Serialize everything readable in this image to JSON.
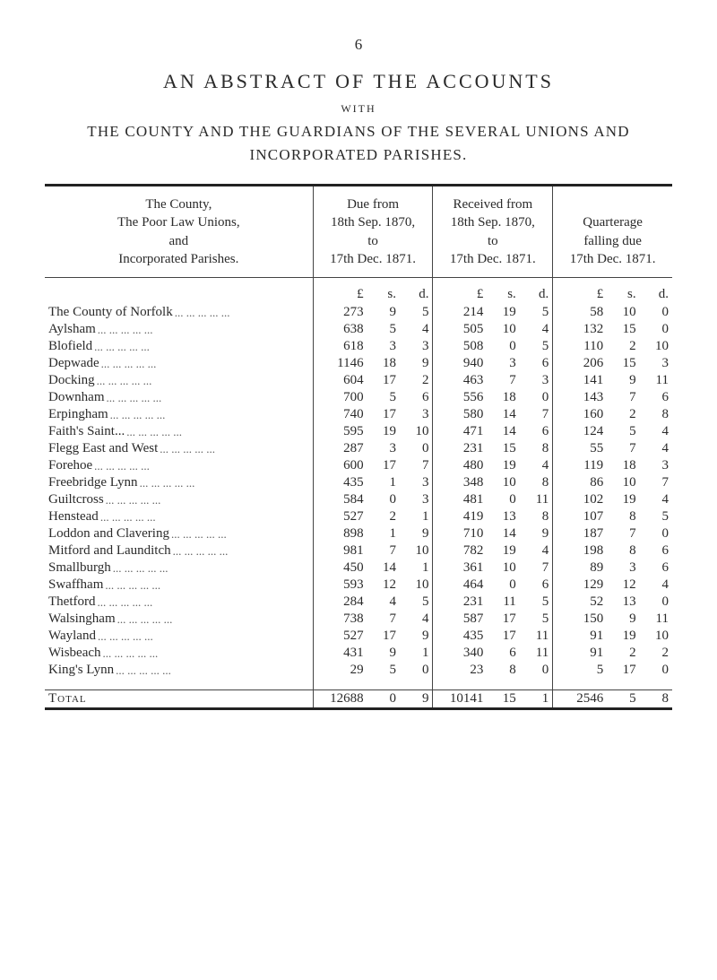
{
  "page_number": "6",
  "title": "AN ABSTRACT OF THE ACCOUNTS",
  "with_label": "WITH",
  "subtitle_line1": "THE COUNTY AND THE GUARDIANS OF THE SEVERAL UNIONS AND",
  "subtitle_line2": "INCORPORATED PARISHES.",
  "column_headers": {
    "desc": "The County,\nThe Poor Law Unions,\nand\nIncorporated Parishes.",
    "due": "Due from\n18th Sep. 1870,\nto\n17th Dec. 1871.",
    "received": "Received from\n18th Sep. 1870,\nto\n17th Dec. 1871.",
    "quarterage": "Quarterage\nfalling due\n17th Dec. 1871."
  },
  "lsd": {
    "L": "£",
    "s": "s.",
    "d": "d."
  },
  "rows": [
    {
      "desc": "The County of Norfolk",
      "due": [
        273,
        9,
        5
      ],
      "rec": [
        214,
        19,
        5
      ],
      "q": [
        58,
        10,
        0
      ]
    },
    {
      "desc": "Aylsham",
      "due": [
        638,
        5,
        4
      ],
      "rec": [
        505,
        10,
        4
      ],
      "q": [
        132,
        15,
        0
      ]
    },
    {
      "desc": "Blofield",
      "due": [
        618,
        3,
        3
      ],
      "rec": [
        508,
        0,
        5
      ],
      "q": [
        110,
        2,
        10
      ]
    },
    {
      "desc": "Depwade",
      "due": [
        1146,
        18,
        9
      ],
      "rec": [
        940,
        3,
        6
      ],
      "q": [
        206,
        15,
        3
      ]
    },
    {
      "desc": "Docking",
      "due": [
        604,
        17,
        2
      ],
      "rec": [
        463,
        7,
        3
      ],
      "q": [
        141,
        9,
        11
      ]
    },
    {
      "desc": "Downham",
      "due": [
        700,
        5,
        6
      ],
      "rec": [
        556,
        18,
        0
      ],
      "q": [
        143,
        7,
        6
      ]
    },
    {
      "desc": "Erpingham",
      "due": [
        740,
        17,
        3
      ],
      "rec": [
        580,
        14,
        7
      ],
      "q": [
        160,
        2,
        8
      ]
    },
    {
      "desc": "Faith's Saint...",
      "due": [
        595,
        19,
        10
      ],
      "rec": [
        471,
        14,
        6
      ],
      "q": [
        124,
        5,
        4
      ]
    },
    {
      "desc": "Flegg East and West",
      "due": [
        287,
        3,
        0
      ],
      "rec": [
        231,
        15,
        8
      ],
      "q": [
        55,
        7,
        4
      ]
    },
    {
      "desc": "Forehoe",
      "due": [
        600,
        17,
        7
      ],
      "rec": [
        480,
        19,
        4
      ],
      "q": [
        119,
        18,
        3
      ]
    },
    {
      "desc": "Freebridge Lynn",
      "due": [
        435,
        1,
        3
      ],
      "rec": [
        348,
        10,
        8
      ],
      "q": [
        86,
        10,
        7
      ]
    },
    {
      "desc": "Guiltcross",
      "due": [
        584,
        0,
        3
      ],
      "rec": [
        481,
        0,
        11
      ],
      "q": [
        102,
        19,
        4
      ]
    },
    {
      "desc": "Henstead",
      "due": [
        527,
        2,
        1
      ],
      "rec": [
        419,
        13,
        8
      ],
      "q": [
        107,
        8,
        5
      ]
    },
    {
      "desc": "Loddon and Clavering",
      "due": [
        898,
        1,
        9
      ],
      "rec": [
        710,
        14,
        9
      ],
      "q": [
        187,
        7,
        0
      ]
    },
    {
      "desc": "Mitford and Launditch",
      "due": [
        981,
        7,
        10
      ],
      "rec": [
        782,
        19,
        4
      ],
      "q": [
        198,
        8,
        6
      ]
    },
    {
      "desc": "Smallburgh",
      "due": [
        450,
        14,
        1
      ],
      "rec": [
        361,
        10,
        7
      ],
      "q": [
        89,
        3,
        6
      ]
    },
    {
      "desc": "Swaffham",
      "due": [
        593,
        12,
        10
      ],
      "rec": [
        464,
        0,
        6
      ],
      "q": [
        129,
        12,
        4
      ]
    },
    {
      "desc": "Thetford",
      "due": [
        284,
        4,
        5
      ],
      "rec": [
        231,
        11,
        5
      ],
      "q": [
        52,
        13,
        0
      ]
    },
    {
      "desc": "Walsingham",
      "due": [
        738,
        7,
        4
      ],
      "rec": [
        587,
        17,
        5
      ],
      "q": [
        150,
        9,
        11
      ]
    },
    {
      "desc": "Wayland",
      "due": [
        527,
        17,
        9
      ],
      "rec": [
        435,
        17,
        11
      ],
      "q": [
        91,
        19,
        10
      ]
    },
    {
      "desc": "Wisbeach",
      "due": [
        431,
        9,
        1
      ],
      "rec": [
        340,
        6,
        11
      ],
      "q": [
        91,
        2,
        2
      ]
    },
    {
      "desc": "King's Lynn",
      "due": [
        29,
        5,
        0
      ],
      "rec": [
        23,
        8,
        0
      ],
      "q": [
        5,
        17,
        0
      ]
    }
  ],
  "total": {
    "label": "Total",
    "due": [
      12688,
      0,
      9
    ],
    "rec": [
      10141,
      15,
      1
    ],
    "q": [
      2546,
      5,
      8
    ]
  },
  "style": {
    "background_color": "#ffffff",
    "text_color": "#2a2a2a",
    "rule_color": "#222222",
    "font_family": "Times New Roman",
    "title_fontsize_pt": 17,
    "body_fontsize_pt": 12
  }
}
